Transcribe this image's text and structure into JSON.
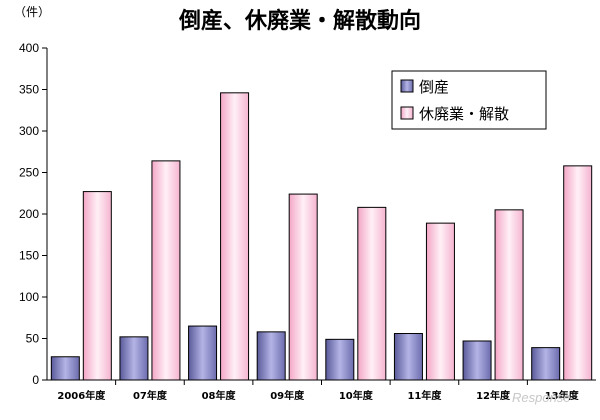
{
  "chart_data": {
    "type": "bar",
    "title": "倒産、休廃業・解散動向",
    "ylabel": "（件）",
    "xlabel": "",
    "ylim": [
      0,
      400
    ],
    "yticks": [
      0,
      50,
      100,
      150,
      200,
      250,
      300,
      350,
      400
    ],
    "categories": [
      "2006年度",
      "07年度",
      "08年度",
      "09年度",
      "10年度",
      "11年度",
      "12年度",
      "13年度"
    ],
    "series": [
      {
        "name": "倒産",
        "values": [
          28,
          52,
          65,
          58,
          49,
          56,
          47,
          39
        ],
        "color": "#8c8cc8"
      },
      {
        "name": "休廃業・解散",
        "values": [
          227,
          264,
          346,
          224,
          208,
          189,
          205,
          258
        ],
        "color": "#f9c8dc"
      }
    ],
    "legend_position": "top-right",
    "grid": false
  },
  "watermark": "Response"
}
